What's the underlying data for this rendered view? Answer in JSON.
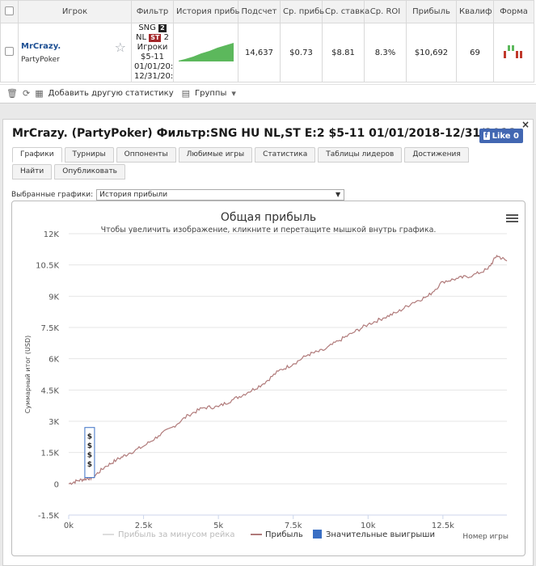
{
  "stats_table": {
    "headers": [
      "Игрок",
      "Фильтр",
      "История прибь",
      "Подсчет",
      "Ср. прибь",
      "Ср. ставка",
      "Ср. ROI",
      "Прибыль",
      "Квалиф",
      "Форма"
    ],
    "row": {
      "player_name": "MrCrazy.",
      "room": "PartyPoker",
      "filter_line1_prefix": "SNG",
      "filter_badge1": "2",
      "filter_line2_prefix": "NL",
      "filter_badge2": "ST",
      "filter_line2_suffix": "2",
      "filter_line3": "Игроки",
      "filter_line4": "$5-11",
      "filter_line5": "01/01/20:",
      "filter_line6": "12/31/20:",
      "count": "14,637",
      "avg_profit": "$0.73",
      "avg_stake": "$8.81",
      "avg_roi": "8.3%",
      "profit": "$10,692",
      "qual": "69"
    }
  },
  "toolbar": {
    "add_stats": "Добавить другую статистику",
    "groups": "Группы"
  },
  "panel": {
    "title": "MrCrazy. (PartyPoker) Фильтр:SNG HU NL,ST E:2 $5-11 01/01/2018-12/31/2018",
    "like_label": "Like 0",
    "tabs": [
      "Графики",
      "Турниры",
      "Оппоненты",
      "Любимые игры",
      "Статистика",
      "Таблицы лидеров",
      "Достижения",
      "Найти",
      "Опубликовать"
    ],
    "selector_label": "Выбранные графики:",
    "selector_value": "История прибыли"
  },
  "chart_data": {
    "type": "line",
    "title": "Общая прибыль",
    "subtitle": "Чтобы увеличить изображение, кликните и перетащите мышкой внутрь графика.",
    "ylabel": "Суммарный итог (USD)",
    "xlabel": "Номер игры",
    "xlim": [
      0,
      14637
    ],
    "ylim": [
      -1500,
      12000
    ],
    "x_ticks": [
      0,
      2500,
      5000,
      7500,
      10000,
      12500
    ],
    "x_tick_labels": [
      "0k",
      "2.5k",
      "5k",
      "7.5k",
      "10k",
      "12.5k"
    ],
    "y_ticks": [
      -1500,
      0,
      1500,
      3000,
      4500,
      6000,
      7500,
      9000,
      10500,
      12000
    ],
    "y_tick_labels": [
      "-1.5K",
      "0",
      "1.5K",
      "3K",
      "4.5K",
      "6K",
      "7.5K",
      "9K",
      "10.5K",
      "12K"
    ],
    "series": [
      {
        "name": "Прибыль",
        "color": "#b07a7a",
        "x": [
          0,
          300,
          600,
          800,
          1200,
          1600,
          2000,
          2500,
          3000,
          3500,
          4000,
          4500,
          5000,
          5500,
          6000,
          6500,
          7000,
          7500,
          8000,
          8500,
          9000,
          9500,
          10000,
          10500,
          11000,
          11500,
          12000,
          12500,
          13000,
          13500,
          14000,
          14300,
          14637
        ],
        "y": [
          0,
          150,
          250,
          300,
          800,
          1150,
          1450,
          1800,
          2300,
          2750,
          3300,
          3650,
          3700,
          4050,
          4400,
          4800,
          5400,
          5750,
          6200,
          6400,
          6850,
          7250,
          7650,
          7950,
          8250,
          8700,
          9000,
          9700,
          9850,
          10000,
          10300,
          10950,
          10692
        ]
      },
      {
        "name": "Прибыль за минусом рейка",
        "color": "#dddddd",
        "x": [],
        "y": []
      }
    ],
    "markers": {
      "name": "Значительные выигрыши",
      "color": "#3a6fc4",
      "symbols": [
        "$",
        "$",
        "$",
        "$"
      ],
      "x": 700,
      "y_range": [
        300,
        2700
      ]
    },
    "legend_position": "bottom",
    "legend": [
      "Прибыль за минусом рейка",
      "Прибыль",
      "Значительные выигрыши"
    ]
  }
}
